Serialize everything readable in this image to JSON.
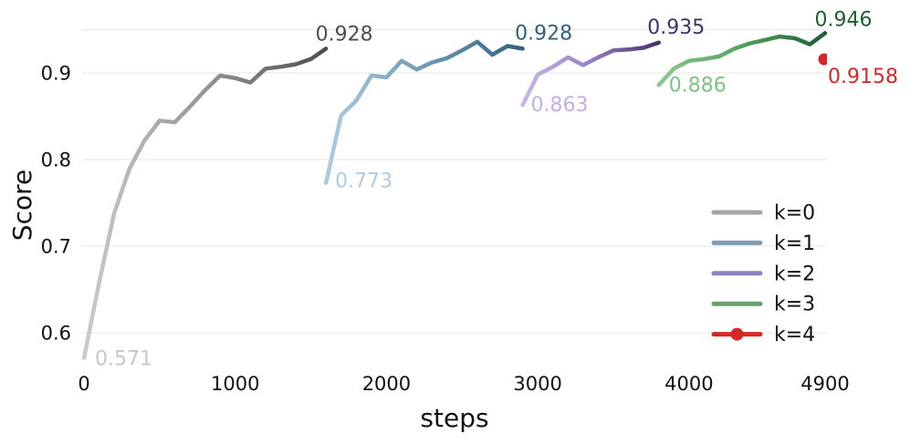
{
  "chart_data": {
    "type": "line",
    "title": "",
    "xlabel": "steps",
    "ylabel": "Score",
    "xlim": [
      0,
      4900
    ],
    "ylim": [
      0.55,
      0.97
    ],
    "x_ticks": {
      "values": [
        0,
        1000,
        2000,
        3000,
        4000,
        4900
      ],
      "labels": [
        "0",
        "1000",
        "2000",
        "3000",
        "4000",
        "4900"
      ]
    },
    "y_ticks": {
      "values": [
        0.6,
        0.7,
        0.8,
        0.9
      ],
      "labels": [
        "0.6",
        "0.7",
        "0.8",
        "0.9"
      ]
    },
    "gridlines_y": [
      0.6,
      0.7,
      0.8,
      0.9,
      0.95
    ],
    "grid": "horizontal",
    "grid_color": "#e9e9e9",
    "legend_position": "lower right",
    "series": [
      {
        "name": "k=0",
        "legend_color": "#a5a5a5",
        "gradient": [
          "#cbcbcb",
          "#959595",
          "#4e4e4e"
        ],
        "marker": false,
        "points": [
          [
            0,
            0.571
          ],
          [
            100,
            0.658
          ],
          [
            200,
            0.738
          ],
          [
            300,
            0.789
          ],
          [
            400,
            0.822
          ],
          [
            500,
            0.845
          ],
          [
            600,
            0.843
          ],
          [
            700,
            0.861
          ],
          [
            800,
            0.88
          ],
          [
            900,
            0.897
          ],
          [
            1000,
            0.894
          ],
          [
            1100,
            0.889
          ],
          [
            1200,
            0.905
          ],
          [
            1300,
            0.907
          ],
          [
            1400,
            0.91
          ],
          [
            1500,
            0.916
          ],
          [
            1600,
            0.928
          ]
        ],
        "labels": [
          {
            "text": "0.571",
            "color": "#c6c6c6",
            "at": "start",
            "anchor": "start",
            "dx": 12,
            "dy": 8
          },
          {
            "text": "0.928",
            "color": "#4e4e4e",
            "at": "end",
            "anchor": "middle",
            "dx": 20,
            "dy": -9
          }
        ]
      },
      {
        "name": "k=1",
        "legend_color": "#7d9cb5",
        "gradient": [
          "#aecbe4",
          "#6f9ab6",
          "#32617e"
        ],
        "marker": false,
        "points": [
          [
            1600,
            0.773
          ],
          [
            1700,
            0.851
          ],
          [
            1800,
            0.868
          ],
          [
            1900,
            0.897
          ],
          [
            2000,
            0.895
          ],
          [
            2100,
            0.914
          ],
          [
            2200,
            0.904
          ],
          [
            2300,
            0.912
          ],
          [
            2400,
            0.917
          ],
          [
            2500,
            0.926
          ],
          [
            2600,
            0.936
          ],
          [
            2700,
            0.921
          ],
          [
            2800,
            0.931
          ],
          [
            2900,
            0.928
          ]
        ],
        "labels": [
          {
            "text": "0.773",
            "color": "#aecbe4",
            "at": "start",
            "anchor": "start",
            "dx": 10,
            "dy": 5
          },
          {
            "text": "0.928",
            "color": "#32617e",
            "at": "end",
            "anchor": "middle",
            "dx": 23,
            "dy": -10
          }
        ]
      },
      {
        "name": "k=2",
        "legend_color": "#8f82c2",
        "gradient": [
          "#c9b8e9",
          "#9480c4",
          "#45316a"
        ],
        "marker": false,
        "points": [
          [
            2900,
            0.863
          ],
          [
            3000,
            0.898
          ],
          [
            3100,
            0.907
          ],
          [
            3200,
            0.918
          ],
          [
            3300,
            0.909
          ],
          [
            3400,
            0.918
          ],
          [
            3500,
            0.926
          ],
          [
            3600,
            0.927
          ],
          [
            3700,
            0.929
          ],
          [
            3800,
            0.935
          ]
        ],
        "labels": [
          {
            "text": "0.863",
            "color": "#c2b0e3",
            "at": "start",
            "anchor": "start",
            "dx": 9,
            "dy": 7
          },
          {
            "text": "0.935",
            "color": "#45316a",
            "at": "end",
            "anchor": "middle",
            "dx": 19,
            "dy": -10
          }
        ]
      },
      {
        "name": "k=3",
        "legend_color": "#65a36c",
        "gradient": [
          "#8fc991",
          "#55a05d",
          "#1e5f2e"
        ],
        "marker": false,
        "points": [
          [
            3800,
            0.886
          ],
          [
            3900,
            0.905
          ],
          [
            4000,
            0.914
          ],
          [
            4100,
            0.916
          ],
          [
            4200,
            0.919
          ],
          [
            4300,
            0.928
          ],
          [
            4400,
            0.934
          ],
          [
            4500,
            0.938
          ],
          [
            4600,
            0.942
          ],
          [
            4700,
            0.94
          ],
          [
            4800,
            0.933
          ],
          [
            4900,
            0.946
          ]
        ],
        "labels": [
          {
            "text": "0.886",
            "color": "#7fc383",
            "at": "start",
            "anchor": "start",
            "dx": 11,
            "dy": 7
          },
          {
            "text": "0.946",
            "color": "#1e5f2e",
            "at": "end",
            "anchor": "middle",
            "dx": 20,
            "dy": -8
          }
        ]
      },
      {
        "name": "k=4",
        "legend_color": "#d62728",
        "gradient": [
          "#d62728"
        ],
        "marker": true,
        "points": [
          [
            4900,
            0.9158
          ]
        ],
        "labels": [
          {
            "text": "0.9158",
            "color": "#d62728",
            "at": "end",
            "anchor": "start",
            "dx": 3,
            "dy": 26
          }
        ]
      }
    ]
  }
}
